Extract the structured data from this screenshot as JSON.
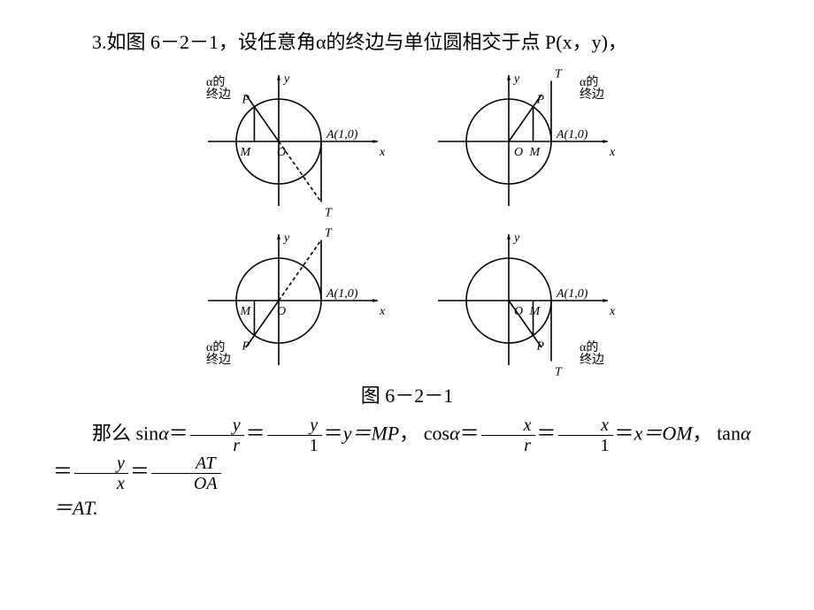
{
  "intro": "3.如图 6－2－1，设任意角α的终边与单位圆相交于点 P(x，y)，",
  "caption": "图 6－2－1",
  "diagram_style": {
    "stroke": "#000000",
    "stroke_width": 1.6,
    "dash": "4 3",
    "font_size": 14,
    "arrow_size": 6
  },
  "labels": {
    "terminal_side": "α的\n终边",
    "y_axis": "y",
    "x_axis": "x",
    "A": "A(1,0)",
    "P": "P",
    "M": "M",
    "O": "O",
    "T": "T"
  },
  "diagrams": [
    {
      "id": "q2-top",
      "quadrant": 2,
      "terminal_label_pos": "top-left",
      "T_below": true,
      "M_left": true,
      "dash_to_T": true
    },
    {
      "id": "q1",
      "quadrant": 1,
      "terminal_label_pos": "top-right",
      "T_below": false,
      "M_left": false,
      "dash_to_T": false
    },
    {
      "id": "q3",
      "quadrant": 3,
      "terminal_label_pos": "bottom-left",
      "T_below": false,
      "M_left": true,
      "dash_to_T": true
    },
    {
      "id": "q4",
      "quadrant": 4,
      "terminal_label_pos": "bottom-right",
      "T_below": true,
      "M_left": false,
      "dash_to_T": false
    }
  ],
  "formula": {
    "lead": "那么 sin",
    "alpha": "α",
    "eq": "＝",
    "frac1": {
      "num": "y",
      "den": "r"
    },
    "frac2": {
      "num": "y",
      "den": "1"
    },
    "y_eq_mp": "y＝MP",
    "comma": "，",
    "cos_lead": "cos",
    "frac3": {
      "num": "x",
      "den": "r"
    },
    "frac4": {
      "num": "x",
      "den": "1"
    },
    "x_eq_om": "x＝OM",
    "tan_lead": "tan",
    "frac5": {
      "num": "y",
      "den": "x"
    },
    "frac6": {
      "num": "AT",
      "den": "OA"
    },
    "tail": "＝AT."
  }
}
